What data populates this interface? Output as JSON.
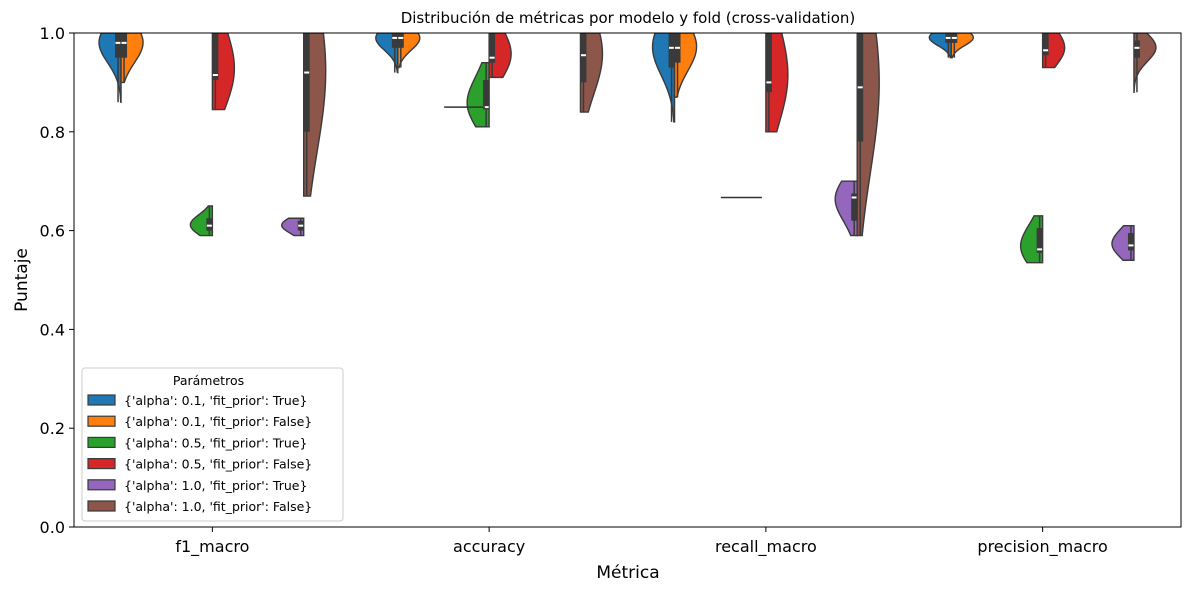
{
  "chart_data": {
    "type": "violin",
    "title": "Distribución de métricas por modelo y fold (cross-validation)",
    "xlabel": "Métrica",
    "ylabel": "Puntaje",
    "ylim": [
      0,
      1.0
    ],
    "yticks": [
      "0.0",
      "0.2",
      "0.4",
      "0.6",
      "0.8",
      "1.0"
    ],
    "categories": [
      "f1_macro",
      "accuracy",
      "recall_macro",
      "precision_macro"
    ],
    "grid": false,
    "split": true,
    "legend": {
      "title": "Parámetros",
      "position": "lower-left"
    },
    "series": [
      {
        "name": "{'alpha': 0.1, 'fit_prior': True}",
        "color": "#1f77b4",
        "side": "left",
        "values": [
          {
            "min": 0.86,
            "q1": 0.95,
            "median": 0.98,
            "q3": 1.0,
            "max": 1.0
          },
          {
            "min": 0.92,
            "q1": 0.97,
            "median": 0.99,
            "q3": 1.0,
            "max": 1.0
          },
          {
            "min": 0.82,
            "q1": 0.93,
            "median": 0.97,
            "q3": 1.0,
            "max": 1.0
          },
          {
            "min": 0.95,
            "q1": 0.98,
            "median": 0.99,
            "q3": 1.0,
            "max": 1.0
          }
        ]
      },
      {
        "name": "{'alpha': 0.1, 'fit_prior': False}",
        "color": "#ff7f0e",
        "side": "right",
        "values": [
          {
            "min": 0.9,
            "q1": 0.95,
            "median": 0.98,
            "q3": 1.0,
            "max": 1.0
          },
          {
            "min": 0.93,
            "q1": 0.97,
            "median": 0.99,
            "q3": 1.0,
            "max": 1.0
          },
          {
            "min": 0.87,
            "q1": 0.94,
            "median": 0.97,
            "q3": 1.0,
            "max": 1.0
          },
          {
            "min": 0.95,
            "q1": 0.98,
            "median": 0.99,
            "q3": 1.0,
            "max": 1.0
          }
        ]
      },
      {
        "name": "{'alpha': 0.5, 'fit_prior': True}",
        "color": "#2ca02c",
        "side": "left",
        "values": [
          {
            "min": 0.59,
            "q1": 0.6,
            "median": 0.61,
            "q3": 0.625,
            "max": 0.65
          },
          {
            "min": 0.81,
            "q1": 0.845,
            "median": 0.85,
            "q3": 0.905,
            "max": 0.94
          },
          null,
          {
            "min": 0.535,
            "q1": 0.555,
            "median": 0.562,
            "q3": 0.605,
            "max": 0.63
          }
        ]
      },
      {
        "name": "{'alpha': 0.5, 'fit_prior': False}",
        "color": "#d62728",
        "side": "right",
        "values": [
          {
            "min": 0.845,
            "q1": 0.905,
            "median": 0.915,
            "q3": 1.0,
            "max": 1.0
          },
          {
            "min": 0.91,
            "q1": 0.94,
            "median": 0.95,
            "q3": 1.0,
            "max": 1.0
          },
          {
            "min": 0.8,
            "q1": 0.88,
            "median": 0.9,
            "q3": 1.0,
            "max": 1.0
          },
          {
            "min": 0.93,
            "q1": 0.955,
            "median": 0.965,
            "q3": 1.0,
            "max": 1.0
          }
        ]
      },
      {
        "name": "{'alpha': 1.0, 'fit_prior': True}",
        "color": "#9467bd",
        "side": "left",
        "values": [
          {
            "min": 0.59,
            "q1": 0.6,
            "median": 0.61,
            "q3": 0.62,
            "max": 0.625
          },
          {
            "min": 0.85,
            "q1": 0.85,
            "median": 0.85,
            "q3": 0.85,
            "max": 0.85
          },
          {
            "min": 0.59,
            "q1": 0.62,
            "median": 0.667,
            "q3": 0.675,
            "max": 0.7
          },
          {
            "min": 0.54,
            "q1": 0.56,
            "median": 0.57,
            "q3": 0.595,
            "max": 0.61
          }
        ]
      },
      {
        "name": "{'alpha': 1.0, 'fit_prior': False}",
        "color": "#8c564b",
        "side": "right",
        "values": [
          {
            "min": 0.67,
            "q1": 0.8,
            "median": 0.92,
            "q3": 1.0,
            "max": 1.0
          },
          {
            "min": 0.84,
            "q1": 0.9,
            "median": 0.955,
            "q3": 1.0,
            "max": 1.0
          },
          {
            "min": 0.59,
            "q1": 0.78,
            "median": 0.89,
            "q3": 1.0,
            "max": 1.0
          },
          {
            "min": 0.88,
            "q1": 0.95,
            "median": 0.97,
            "q3": 0.985,
            "max": 1.0
          }
        ]
      }
    ],
    "flat_lines": [
      {
        "category": "accuracy",
        "value": 0.85,
        "color": "#333333"
      },
      {
        "category": "recall_macro",
        "value": 0.667,
        "color": "#333333"
      }
    ]
  }
}
